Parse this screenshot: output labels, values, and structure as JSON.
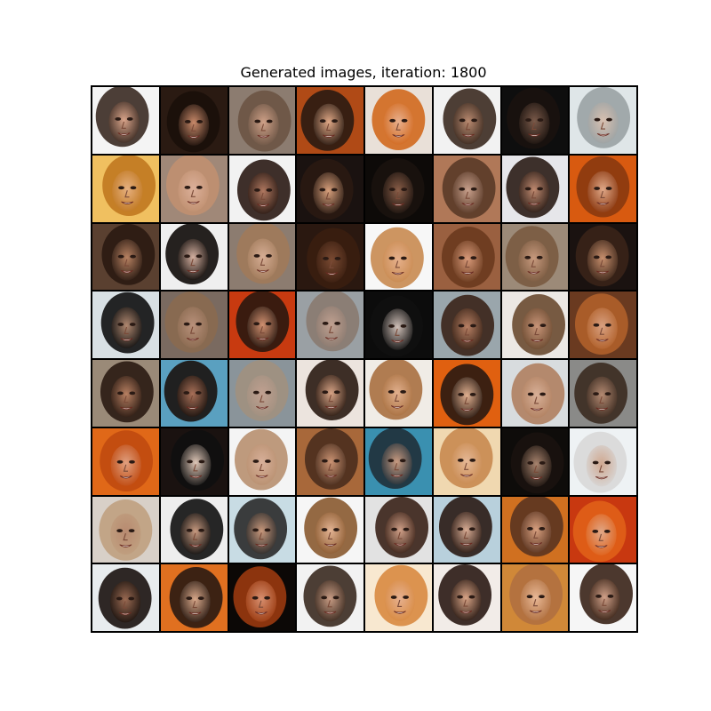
{
  "figure": {
    "title": "Generated images, iteration: 1800"
  },
  "grid": {
    "rows": 8,
    "cols": 8,
    "tiles": [
      {
        "bg": "#f4f4f4",
        "hair": "#3a2a22",
        "skin": "#d9a48a"
      },
      {
        "bg": "#2a1a12",
        "hair": "#1a0f0a",
        "skin": "#c98a6a"
      },
      {
        "bg": "#8c7c70",
        "hair": "#6b5444",
        "skin": "#cfa188"
      },
      {
        "bg": "#b04a16",
        "hair": "#2b1b12",
        "skin": "#e0a886"
      },
      {
        "bg": "#e9e0d8",
        "hair": "#d2691e",
        "skin": "#e8b08e"
      },
      {
        "bg": "#f2f2f2",
        "hair": "#3b2a20",
        "skin": "#b98a70"
      },
      {
        "bg": "#0e0e0e",
        "hair": "#1a120e",
        "skin": "#7a5a4a"
      },
      {
        "bg": "#dfe6e8",
        "hair": "#9aa2a4",
        "skin": "#d8c0b0"
      },
      {
        "bg": "#f0c060",
        "hair": "#c07820",
        "skin": "#e6b080"
      },
      {
        "bg": "#a08878",
        "hair": "#c09070",
        "skin": "#dcb09a"
      },
      {
        "bg": "#f2f2f2",
        "hair": "#2a1a14",
        "skin": "#b07860"
      },
      {
        "bg": "#1a1210",
        "hair": "#2a1a12",
        "skin": "#d8a07c"
      },
      {
        "bg": "#0d0a08",
        "hair": "#1a120e",
        "skin": "#8a5e48"
      },
      {
        "bg": "#b07858",
        "hair": "#5a3a28",
        "skin": "#c8a08c"
      },
      {
        "bg": "#e6e6ea",
        "hair": "#2a1c16",
        "skin": "#c08a70"
      },
      {
        "bg": "#d85a10",
        "hair": "#8a3810",
        "skin": "#e0a888"
      },
      {
        "bg": "#5a4030",
        "hair": "#2a1a12",
        "skin": "#b88262"
      },
      {
        "bg": "#efefef",
        "hair": "#0e0a08",
        "skin": "#d4b0a0"
      },
      {
        "bg": "#8c7c70",
        "hair": "#a07a5a",
        "skin": "#d6ad94"
      },
      {
        "bg": "#2a1810",
        "hair": "#3a1e10",
        "skin": "#7a4a32"
      },
      {
        "bg": "#f7f7f7",
        "hair": "#c88a50",
        "skin": "#e6b08c"
      },
      {
        "bg": "#9a6040",
        "hair": "#6a3a1e",
        "skin": "#d89a7a"
      },
      {
        "bg": "#9c8a78",
        "hair": "#7a5a40",
        "skin": "#c89a7e"
      },
      {
        "bg": "#1a1210",
        "hair": "#3a2418",
        "skin": "#c8906e"
      },
      {
        "bg": "#d8e0e4",
        "hair": "#101010",
        "skin": "#b08870"
      },
      {
        "bg": "#7a6a60",
        "hair": "#8a6a50",
        "skin": "#b8907a"
      },
      {
        "bg": "#c83a10",
        "hair": "#2a1810",
        "skin": "#d09070"
      },
      {
        "bg": "#9aa0a4",
        "hair": "#8a7a70",
        "skin": "#c0a090"
      },
      {
        "bg": "#0c0c0c",
        "hair": "#101010",
        "skin": "#d0c0b8"
      },
      {
        "bg": "#9aa6ac",
        "hair": "#3a2418",
        "skin": "#b88064"
      },
      {
        "bg": "#ece8e4",
        "hair": "#6a4a30",
        "skin": "#c89478"
      },
      {
        "bg": "#6a3a20",
        "hair": "#b0602a",
        "skin": "#d8a080"
      },
      {
        "bg": "#9a8a78",
        "hair": "#2a1a12",
        "skin": "#b88062"
      },
      {
        "bg": "#5aa0c0",
        "hair": "#1a120e",
        "skin": "#a87058"
      },
      {
        "bg": "#8a949a",
        "hair": "#a09080",
        "skin": "#c0a090"
      },
      {
        "bg": "#ece4de",
        "hair": "#2a1a12",
        "skin": "#d8a486"
      },
      {
        "bg": "#f0ece6",
        "hair": "#a87040",
        "skin": "#e2b08e"
      },
      {
        "bg": "#e06010",
        "hair": "#2a1a12",
        "skin": "#e0b090"
      },
      {
        "bg": "#d8dcde",
        "hair": "#b08060",
        "skin": "#d8b098"
      },
      {
        "bg": "#8a8a88",
        "hair": "#3a2a20",
        "skin": "#b48a72"
      },
      {
        "bg": "#e06818",
        "hair": "#c04a10",
        "skin": "#e0a080"
      },
      {
        "bg": "#1a1210",
        "hair": "#101010",
        "skin": "#e0c8b8"
      },
      {
        "bg": "#f4f4f4",
        "hair": "#b89070",
        "skin": "#d8b09a"
      },
      {
        "bg": "#a8683a",
        "hair": "#4a2e1e",
        "skin": "#cc9474"
      },
      {
        "bg": "#3a90b0",
        "hair": "#20303a",
        "skin": "#c89a80"
      },
      {
        "bg": "#f0d8b0",
        "hair": "#c88a50",
        "skin": "#e6b896"
      },
      {
        "bg": "#0e0c0a",
        "hair": "#1a120e",
        "skin": "#a8846e"
      },
      {
        "bg": "#eef2f4",
        "hair": "#d8d8d8",
        "skin": "#d0a890"
      },
      {
        "bg": "#d8d0c8",
        "hair": "#c0a080",
        "skin": "#b88a70"
      },
      {
        "bg": "#eeeeee",
        "hair": "#101010",
        "skin": "#c89a80"
      },
      {
        "bg": "#c8dce4",
        "hair": "#2a2a2a",
        "skin": "#c8987c"
      },
      {
        "bg": "#f6f6f6",
        "hair": "#8a5a30",
        "skin": "#e4b494"
      },
      {
        "bg": "#e2e2e2",
        "hair": "#3a2218",
        "skin": "#d0a088"
      },
      {
        "bg": "#b8d0dc",
        "hair": "#2a1a14",
        "skin": "#d8ac94"
      },
      {
        "bg": "#d07020",
        "hair": "#5a3420",
        "skin": "#d8a080"
      },
      {
        "bg": "#c83810",
        "hair": "#e06018",
        "skin": "#e0a888"
      },
      {
        "bg": "#e8ecee",
        "hair": "#1a120e",
        "skin": "#9a6a52"
      },
      {
        "bg": "#e07020",
        "hair": "#2a1a12",
        "skin": "#d8a88a"
      },
      {
        "bg": "#0c0806",
        "hair": "#9a3a10",
        "skin": "#d89070"
      },
      {
        "bg": "#f2f2f2",
        "hair": "#3a2a20",
        "skin": "#c89c84"
      },
      {
        "bg": "#f8e8d0",
        "hair": "#d88a40",
        "skin": "#e6b090"
      },
      {
        "bg": "#f2ece8",
        "hair": "#2a1a14",
        "skin": "#d8a486"
      },
      {
        "bg": "#d08838",
        "hair": "#b07040",
        "skin": "#e8b896"
      },
      {
        "bg": "#f6f6f6",
        "hair": "#3a2418",
        "skin": "#d0a088"
      }
    ]
  }
}
